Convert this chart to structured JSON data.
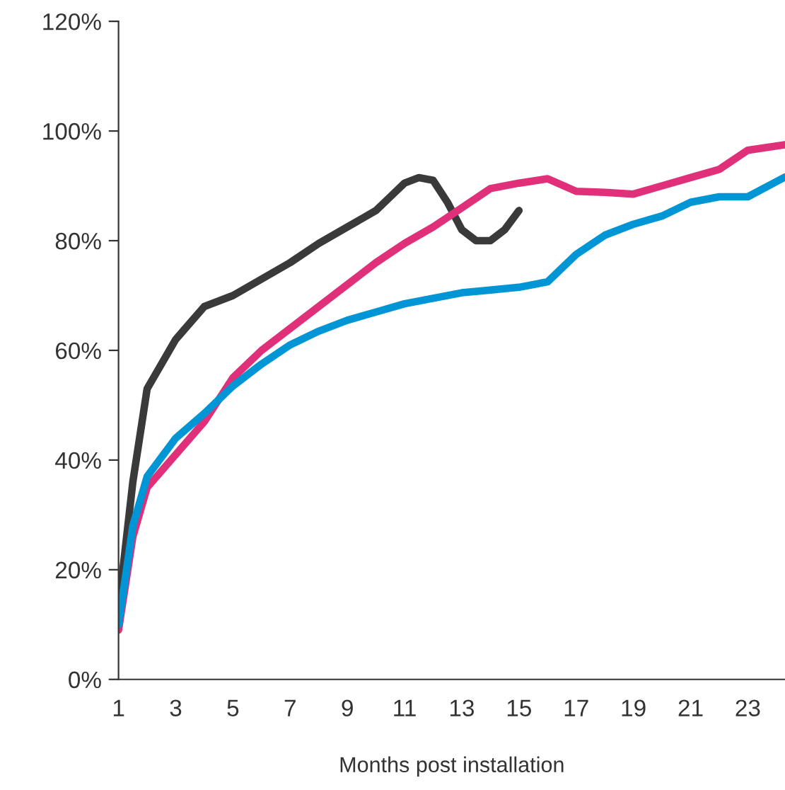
{
  "chart_data": {
    "type": "line",
    "xlabel": "Months post installation",
    "x": [
      1,
      1.5,
      2,
      3,
      4,
      5,
      6,
      7,
      8,
      9,
      10,
      11,
      12,
      13,
      14,
      15,
      16,
      17,
      18,
      19,
      20,
      21,
      22,
      23,
      24.3
    ],
    "series": [
      {
        "color": "#3a3a3a",
        "x": [
          1,
          1.5,
          2,
          3,
          4,
          5,
          6,
          7,
          8,
          9,
          10,
          10.5,
          11,
          11.5,
          12,
          12.5,
          13,
          13.5,
          14,
          14.5,
          15
        ],
        "values": [
          13,
          36,
          53,
          62,
          68,
          70,
          73,
          76,
          79.5,
          82.5,
          85.5,
          88,
          90.5,
          91.5,
          91,
          87,
          82,
          80,
          80,
          82,
          85.5
        ]
      },
      {
        "color": "#e0307a",
        "values": [
          9,
          26,
          35,
          41,
          47,
          55,
          60,
          64,
          68,
          72,
          76,
          79.5,
          82.5,
          86,
          89.5,
          90.5,
          91.3,
          89,
          88.8,
          88.5,
          90,
          91.5,
          93,
          96.5,
          97.5
        ]
      },
      {
        "color": "#0096d6",
        "values": [
          10,
          28,
          37,
          44,
          48.5,
          53.5,
          57.5,
          61,
          63.5,
          65.5,
          67,
          68.5,
          69.5,
          70.5,
          71,
          71.5,
          72.5,
          77.5,
          81,
          83,
          84.5,
          87,
          88,
          88,
          91.6
        ]
      }
    ],
    "xlim": [
      1,
      24.3
    ],
    "xticks": [
      1,
      3,
      5,
      7,
      9,
      11,
      13,
      15,
      17,
      19,
      21,
      23
    ],
    "ylim": [
      0,
      120
    ],
    "yticks": [
      {
        "value": 0,
        "label": "0%"
      },
      {
        "value": 20,
        "label": "20%"
      },
      {
        "value": 40,
        "label": "40%"
      },
      {
        "value": 60,
        "label": "60%"
      },
      {
        "value": 80,
        "label": "80%"
      },
      {
        "value": 100,
        "label": "100%"
      },
      {
        "value": 120,
        "label": "120%"
      }
    ],
    "marker": "none",
    "line_style": "solid",
    "grid": false,
    "legend": false
  }
}
